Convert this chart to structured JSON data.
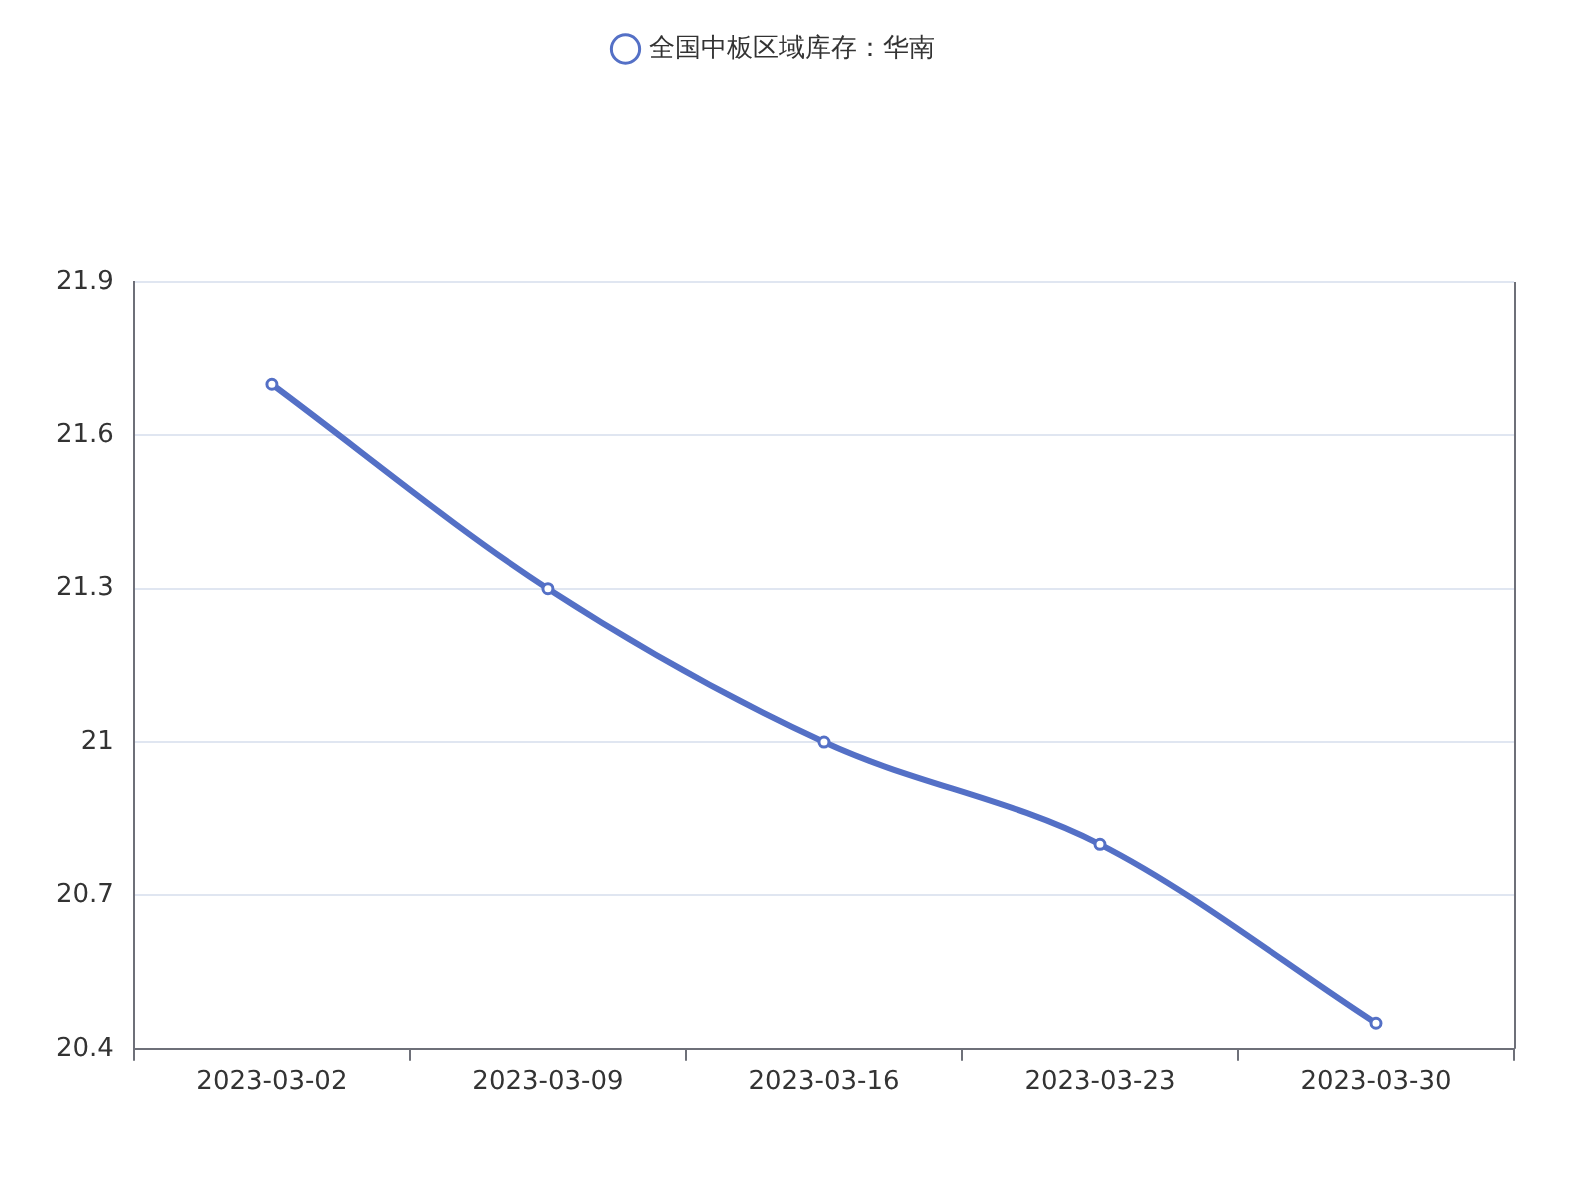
{
  "chart_data": {
    "type": "line",
    "categories": [
      "2023-03-02",
      "2023-03-09",
      "2023-03-16",
      "2023-03-23",
      "2023-03-30"
    ],
    "series": [
      {
        "name": "全国中板区域库存：华南",
        "color": "#5470c6",
        "values": [
          21.7,
          21.3,
          21.0,
          20.8,
          20.45
        ]
      }
    ],
    "ylim": [
      20.4,
      21.9
    ],
    "yticks": [
      20.4,
      20.7,
      21,
      21.3,
      21.6,
      21.9
    ],
    "grid": "y",
    "legend": "top",
    "marker": "circle",
    "line_style": "solid"
  }
}
